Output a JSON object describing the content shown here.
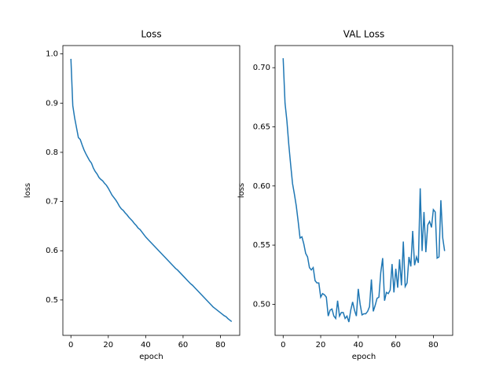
{
  "chart_data": [
    {
      "type": "line",
      "title": "Loss",
      "xlabel": "epoch",
      "ylabel": "loss",
      "color": "#1f77b4",
      "x": [
        0,
        1,
        2,
        3,
        4,
        5,
        6,
        7,
        8,
        9,
        10,
        11,
        12,
        13,
        14,
        15,
        16,
        17,
        18,
        19,
        20,
        21,
        22,
        23,
        24,
        25,
        26,
        27,
        28,
        29,
        30,
        31,
        32,
        33,
        34,
        35,
        36,
        37,
        38,
        39,
        40,
        41,
        42,
        43,
        44,
        45,
        46,
        47,
        48,
        49,
        50,
        51,
        52,
        53,
        54,
        55,
        56,
        57,
        58,
        59,
        60,
        61,
        62,
        63,
        64,
        65,
        66,
        67,
        68,
        69,
        70,
        71,
        72,
        73,
        74,
        75,
        76,
        77,
        78,
        79,
        80,
        81,
        82,
        83,
        84,
        85,
        86
      ],
      "values": [
        0.99,
        0.895,
        0.87,
        0.85,
        0.83,
        0.826,
        0.815,
        0.805,
        0.797,
        0.79,
        0.783,
        0.778,
        0.768,
        0.761,
        0.756,
        0.749,
        0.745,
        0.742,
        0.737,
        0.733,
        0.727,
        0.72,
        0.713,
        0.708,
        0.703,
        0.697,
        0.69,
        0.685,
        0.682,
        0.677,
        0.673,
        0.668,
        0.664,
        0.66,
        0.655,
        0.651,
        0.646,
        0.643,
        0.638,
        0.633,
        0.628,
        0.624,
        0.62,
        0.616,
        0.612,
        0.608,
        0.604,
        0.6,
        0.596,
        0.592,
        0.588,
        0.584,
        0.58,
        0.576,
        0.572,
        0.568,
        0.564,
        0.561,
        0.557,
        0.553,
        0.549,
        0.545,
        0.541,
        0.537,
        0.533,
        0.53,
        0.526,
        0.522,
        0.518,
        0.514,
        0.51,
        0.506,
        0.502,
        0.498,
        0.494,
        0.49,
        0.486,
        0.483,
        0.48,
        0.477,
        0.474,
        0.471,
        0.468,
        0.466,
        0.462,
        0.459,
        0.456
      ],
      "xlim": [
        -4.3,
        90.3
      ],
      "xticks": [
        0,
        20,
        40,
        60,
        80
      ],
      "ylim": [
        0.428,
        1.017
      ],
      "yticks": [
        0.5,
        0.6,
        0.7,
        0.8,
        0.9,
        {
          "value": 1,
          "label": "1.0"
        }
      ]
    },
    {
      "type": "line",
      "title": "VAL Loss",
      "xlabel": "epoch",
      "ylabel": "loss",
      "color": "#1f77b4",
      "x": [
        0,
        1,
        2,
        3,
        4,
        5,
        6,
        7,
        8,
        9,
        10,
        11,
        12,
        13,
        14,
        15,
        16,
        17,
        18,
        19,
        20,
        21,
        22,
        23,
        24,
        25,
        26,
        27,
        28,
        29,
        30,
        31,
        32,
        33,
        34,
        35,
        36,
        37,
        38,
        39,
        40,
        41,
        42,
        43,
        44,
        45,
        46,
        47,
        48,
        49,
        50,
        51,
        52,
        53,
        54,
        55,
        56,
        57,
        58,
        59,
        60,
        61,
        62,
        63,
        64,
        65,
        66,
        67,
        68,
        69,
        70,
        71,
        72,
        73,
        74,
        75,
        76,
        77,
        78,
        79,
        80,
        81,
        82,
        83,
        84,
        85,
        86
      ],
      "values": [
        0.708,
        0.67,
        0.655,
        0.635,
        0.618,
        0.602,
        0.593,
        0.583,
        0.57,
        0.556,
        0.557,
        0.551,
        0.543,
        0.54,
        0.531,
        0.529,
        0.531,
        0.52,
        0.518,
        0.518,
        0.506,
        0.509,
        0.508,
        0.506,
        0.49,
        0.495,
        0.496,
        0.49,
        0.488,
        0.503,
        0.49,
        0.493,
        0.493,
        0.488,
        0.49,
        0.485,
        0.495,
        0.502,
        0.495,
        0.49,
        0.513,
        0.5,
        0.491,
        0.492,
        0.492,
        0.494,
        0.498,
        0.521,
        0.494,
        0.499,
        0.505,
        0.506,
        0.527,
        0.539,
        0.503,
        0.51,
        0.509,
        0.512,
        0.534,
        0.51,
        0.53,
        0.514,
        0.538,
        0.516,
        0.553,
        0.515,
        0.518,
        0.54,
        0.532,
        0.562,
        0.533,
        0.54,
        0.535,
        0.598,
        0.545,
        0.578,
        0.544,
        0.567,
        0.57,
        0.565,
        0.58,
        0.578,
        0.539,
        0.54,
        0.588,
        0.556,
        0.545
      ],
      "xlim": [
        -4.3,
        90.3
      ],
      "xticks": [
        0,
        20,
        40,
        60,
        80
      ],
      "ylim": [
        0.4737,
        0.7187
      ],
      "yticks": [
        {
          "value": 0.5,
          "label": "0.50"
        },
        0.55,
        {
          "value": 0.6,
          "label": "0.60"
        },
        0.65,
        {
          "value": 0.7,
          "label": "0.70"
        }
      ]
    }
  ]
}
